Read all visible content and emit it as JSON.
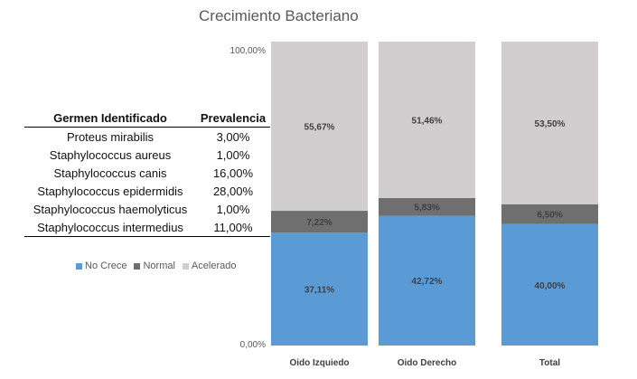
{
  "chart_data": {
    "type": "bar",
    "stacked": true,
    "title": "Crecimiento Bacteriano",
    "categories": [
      "Oido Izquiedo",
      "Oido Derecho",
      "Total"
    ],
    "series": [
      {
        "name": "No Crece",
        "color": "#5b9bd5",
        "values": [
          37.11,
          42.72,
          40.0
        ],
        "labels": [
          "37,11%",
          "42,72%",
          "40,00%"
        ]
      },
      {
        "name": "Normal",
        "color": "#6f6f6f",
        "values": [
          7.22,
          5.83,
          6.5
        ],
        "labels": [
          "7,22%",
          "5,83%",
          "6,50%"
        ]
      },
      {
        "name": "Acelerado",
        "color": "#d0cece",
        "values": [
          55.67,
          51.46,
          53.5
        ],
        "labels": [
          "55,67%",
          "51,46%",
          "53,50%"
        ]
      }
    ],
    "ylim": [
      0,
      100
    ],
    "ytick_labels": [
      "0,00%",
      "100,00%"
    ],
    "legend_position": "left"
  },
  "table": {
    "headers": [
      "Germen Identificado",
      "Prevalencia"
    ],
    "rows": [
      [
        "Proteus mirabilis",
        "3,00%"
      ],
      [
        "Staphylococcus aureus",
        "1,00%"
      ],
      [
        "Staphylococcus canis",
        "16,00%"
      ],
      [
        "Staphylococcus epidermidis",
        "28,00%"
      ],
      [
        "Staphylococcus haemolyticus",
        "1,00%"
      ],
      [
        "Staphylococcus intermedius",
        "11,00%"
      ]
    ]
  }
}
